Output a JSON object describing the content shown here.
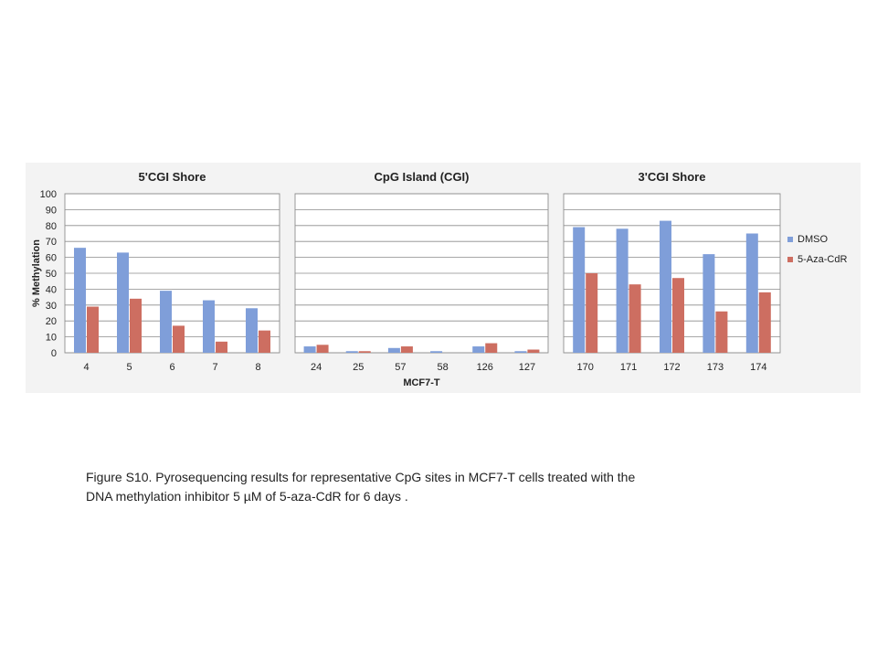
{
  "chart_data": {
    "type": "bar",
    "ylabel": "% Methylation",
    "xlabel": "MCF7-T",
    "ylim": [
      0,
      100
    ],
    "yticks": [
      0,
      10,
      20,
      30,
      40,
      50,
      60,
      70,
      80,
      90,
      100
    ],
    "grid": true,
    "legend_position": "right",
    "legend": [
      {
        "name": "DMSO",
        "color": "#7f9ed9"
      },
      {
        "name": "5-Aza-CdR",
        "color": "#cd6e61"
      }
    ],
    "panels": [
      {
        "title": "5'CGI Shore",
        "categories": [
          "4",
          "5",
          "6",
          "7",
          "8"
        ],
        "series": [
          {
            "name": "DMSO",
            "values": [
              66,
              63,
              39,
              33,
              28
            ]
          },
          {
            "name": "5-Aza-CdR",
            "values": [
              29,
              34,
              17,
              7,
              14
            ]
          }
        ]
      },
      {
        "title": "CpG Island (CGI)",
        "categories": [
          "24",
          "25",
          "57",
          "58",
          "126",
          "127"
        ],
        "series": [
          {
            "name": "DMSO",
            "values": [
              4,
              1,
              3,
              1,
              4,
              1
            ]
          },
          {
            "name": "5-Aza-CdR",
            "values": [
              5,
              1,
              4,
              0,
              6,
              2
            ]
          }
        ]
      },
      {
        "title": "3'CGI Shore",
        "categories": [
          "170",
          "171",
          "172",
          "173",
          "174"
        ],
        "series": [
          {
            "name": "DMSO",
            "values": [
              79,
              78,
              83,
              62,
              75
            ]
          },
          {
            "name": "5-Aza-CdR",
            "values": [
              50,
              43,
              47,
              26,
              38
            ]
          }
        ]
      }
    ]
  },
  "caption": {
    "line1": "Figure S10. Pyrosequencing results for representative CpG sites in MCF7-T cells treated with the",
    "line2": "DNA methylation inhibitor 5 µM of 5-aza-CdR for 6 days ."
  }
}
